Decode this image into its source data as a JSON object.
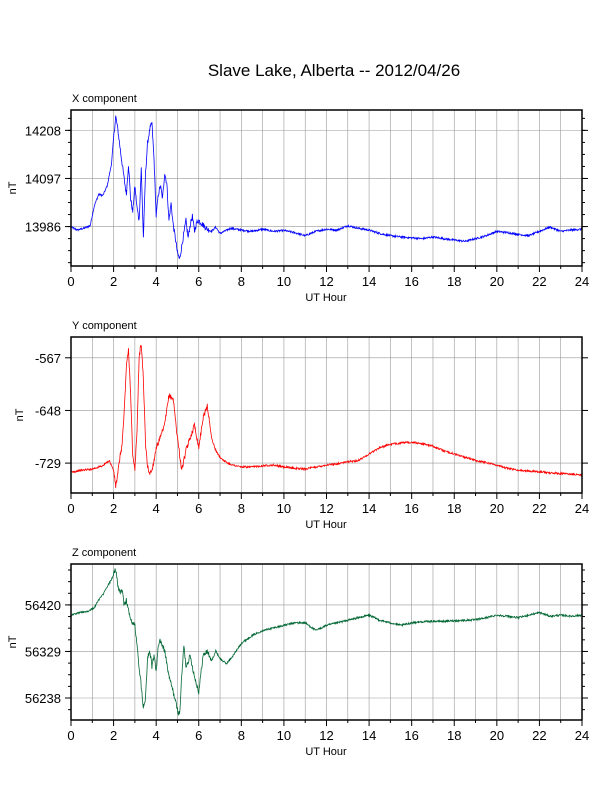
{
  "title": "Slave Lake, Alberta -- 2012/04/26",
  "chart_data": [
    {
      "type": "line",
      "panel_title": "X component",
      "xlabel": "UT Hour",
      "ylabel": "nT",
      "xlim": [
        0,
        24
      ],
      "ylim": [
        13895,
        14255
      ],
      "x_ticks": [
        0,
        2,
        4,
        6,
        8,
        10,
        12,
        14,
        16,
        18,
        20,
        22,
        24
      ],
      "y_ticks": [
        13986,
        14097,
        14208
      ],
      "grid": true,
      "color": "#0000ff",
      "series": [
        {
          "x": [
            0,
            0.3,
            0.6,
            0.9,
            1.1,
            1.3,
            1.5,
            1.7,
            1.9,
            2.0,
            2.1,
            2.2,
            2.35,
            2.5,
            2.6,
            2.7,
            2.8,
            2.9,
            3.0,
            3.1,
            3.2,
            3.3,
            3.4,
            3.5,
            3.6,
            3.7,
            3.8,
            3.9,
            4.0,
            4.1,
            4.2,
            4.3,
            4.4,
            4.5,
            4.6,
            4.7,
            4.8,
            4.9,
            5.0,
            5.1,
            5.2,
            5.3,
            5.4,
            5.5,
            5.6,
            5.7,
            5.8,
            5.9,
            6.0,
            6.2,
            6.4,
            6.6,
            6.8,
            7.0,
            7.2,
            7.5,
            8.0,
            8.5,
            9.0,
            9.5,
            10.0,
            10.5,
            11.0,
            11.5,
            12.0,
            12.5,
            13.0,
            13.5,
            14.0,
            14.5,
            15.0,
            15.5,
            16.0,
            16.5,
            17.0,
            17.5,
            18.0,
            18.5,
            19.0,
            19.5,
            20.0,
            20.5,
            21.0,
            21.5,
            22.0,
            22.5,
            23.0,
            23.5,
            24.0
          ],
          "y": [
            13985,
            13978,
            13982,
            13988,
            14035,
            14060,
            14058,
            14080,
            14130,
            14190,
            14240,
            14210,
            14150,
            14095,
            14060,
            14130,
            14050,
            14020,
            14080,
            14030,
            14000,
            14120,
            13960,
            14110,
            14180,
            14210,
            14225,
            14140,
            14010,
            14060,
            14080,
            14050,
            14110,
            14085,
            14000,
            14040,
            13990,
            13960,
            13925,
            13910,
            13940,
            13970,
            14000,
            13960,
            13990,
            14010,
            13975,
            13995,
            14000,
            13990,
            13980,
            13975,
            13985,
            13970,
            13975,
            13982,
            13978,
            13975,
            13980,
            13975,
            13977,
            13972,
            13965,
            13975,
            13980,
            13978,
            13988,
            13982,
            13978,
            13970,
            13965,
            13962,
            13960,
            13958,
            13962,
            13958,
            13955,
            13952,
            13958,
            13965,
            13975,
            13972,
            13968,
            13965,
            13975,
            13985,
            13975,
            13978,
            13980
          ]
        }
      ]
    },
    {
      "type": "line",
      "panel_title": "Y component",
      "xlabel": "UT Hour",
      "ylabel": "nT",
      "xlim": [
        0,
        24
      ],
      "ylim": [
        -775,
        -535
      ],
      "x_ticks": [
        0,
        2,
        4,
        6,
        8,
        10,
        12,
        14,
        16,
        18,
        20,
        22,
        24
      ],
      "y_ticks": [
        -567,
        -648,
        -729
      ],
      "grid": true,
      "color": "#ff0000",
      "series": [
        {
          "x": [
            0,
            0.5,
            1.0,
            1.5,
            1.8,
            2.0,
            2.1,
            2.2,
            2.3,
            2.4,
            2.5,
            2.6,
            2.7,
            2.8,
            2.9,
            3.0,
            3.1,
            3.2,
            3.3,
            3.4,
            3.5,
            3.6,
            3.7,
            3.8,
            3.9,
            4.0,
            4.2,
            4.4,
            4.6,
            4.8,
            4.9,
            5.0,
            5.2,
            5.4,
            5.6,
            5.8,
            6.0,
            6.2,
            6.4,
            6.6,
            6.8,
            7.0,
            7.3,
            7.6,
            8.0,
            8.5,
            9.0,
            9.5,
            10.0,
            10.5,
            11.0,
            11.5,
            12.0,
            12.5,
            13.0,
            13.5,
            14.0,
            14.5,
            15.0,
            15.5,
            16.0,
            16.5,
            17.0,
            17.5,
            18.0,
            18.5,
            19.0,
            19.5,
            20.0,
            20.5,
            21.0,
            21.5,
            22.0,
            22.5,
            23.0,
            23.5,
            24.0
          ],
          "y": [
            -743,
            -740,
            -738,
            -733,
            -725,
            -740,
            -765,
            -745,
            -720,
            -700,
            -650,
            -580,
            -555,
            -620,
            -720,
            -740,
            -680,
            -565,
            -545,
            -600,
            -700,
            -735,
            -745,
            -740,
            -725,
            -705,
            -690,
            -670,
            -625,
            -630,
            -660,
            -690,
            -740,
            -710,
            -690,
            -670,
            -705,
            -660,
            -640,
            -690,
            -710,
            -720,
            -728,
            -732,
            -735,
            -735,
            -733,
            -732,
            -735,
            -737,
            -738,
            -735,
            -732,
            -730,
            -727,
            -725,
            -715,
            -705,
            -700,
            -698,
            -697,
            -699,
            -703,
            -710,
            -715,
            -720,
            -725,
            -728,
            -732,
            -737,
            -740,
            -741,
            -742,
            -744,
            -745,
            -746,
            -747
          ]
        }
      ]
    },
    {
      "type": "line",
      "panel_title": "Z component",
      "xlabel": "UT Hour",
      "ylabel": "nT",
      "xlim": [
        0,
        24
      ],
      "ylim": [
        56195,
        56500
      ],
      "x_ticks": [
        0,
        2,
        4,
        6,
        8,
        10,
        12,
        14,
        16,
        18,
        20,
        22,
        24
      ],
      "y_ticks": [
        56238,
        56329,
        56420
      ],
      "grid": true,
      "color": "#006633",
      "series": [
        {
          "x": [
            0,
            0.4,
            0.8,
            1.1,
            1.3,
            1.5,
            1.7,
            1.9,
            2.0,
            2.1,
            2.2,
            2.3,
            2.4,
            2.5,
            2.6,
            2.8,
            3.0,
            3.2,
            3.4,
            3.5,
            3.6,
            3.7,
            3.8,
            3.9,
            4.0,
            4.1,
            4.2,
            4.4,
            4.6,
            4.8,
            5.0,
            5.1,
            5.2,
            5.3,
            5.4,
            5.6,
            5.8,
            6.0,
            6.2,
            6.4,
            6.6,
            6.8,
            7.0,
            7.3,
            7.6,
            8.0,
            8.5,
            9.0,
            9.5,
            10.0,
            10.5,
            11.0,
            11.5,
            12.0,
            12.5,
            13.0,
            13.5,
            14.0,
            14.5,
            15.0,
            15.5,
            16.0,
            16.5,
            17.0,
            17.5,
            18.0,
            18.5,
            19.0,
            19.5,
            20.0,
            20.5,
            21.0,
            21.5,
            22.0,
            22.5,
            23.0,
            23.5,
            24.0
          ],
          "y": [
            56400,
            56405,
            56408,
            56415,
            56430,
            56440,
            56455,
            56470,
            56480,
            56490,
            56460,
            56440,
            56450,
            56420,
            56430,
            56390,
            56380,
            56300,
            56220,
            56240,
            56320,
            56330,
            56300,
            56320,
            56290,
            56340,
            56350,
            56330,
            56280,
            56250,
            56215,
            56205,
            56280,
            56340,
            56300,
            56320,
            56280,
            56250,
            56320,
            56330,
            56310,
            56330,
            56315,
            56305,
            56320,
            56345,
            56360,
            56370,
            56375,
            56380,
            56385,
            56385,
            56370,
            56380,
            56385,
            56390,
            56395,
            56400,
            56390,
            56385,
            56380,
            56385,
            56387,
            56388,
            56388,
            56389,
            56390,
            56391,
            56395,
            56400,
            56398,
            56395,
            56400,
            56405,
            56398,
            56400,
            56398,
            56400
          ]
        }
      ]
    }
  ]
}
